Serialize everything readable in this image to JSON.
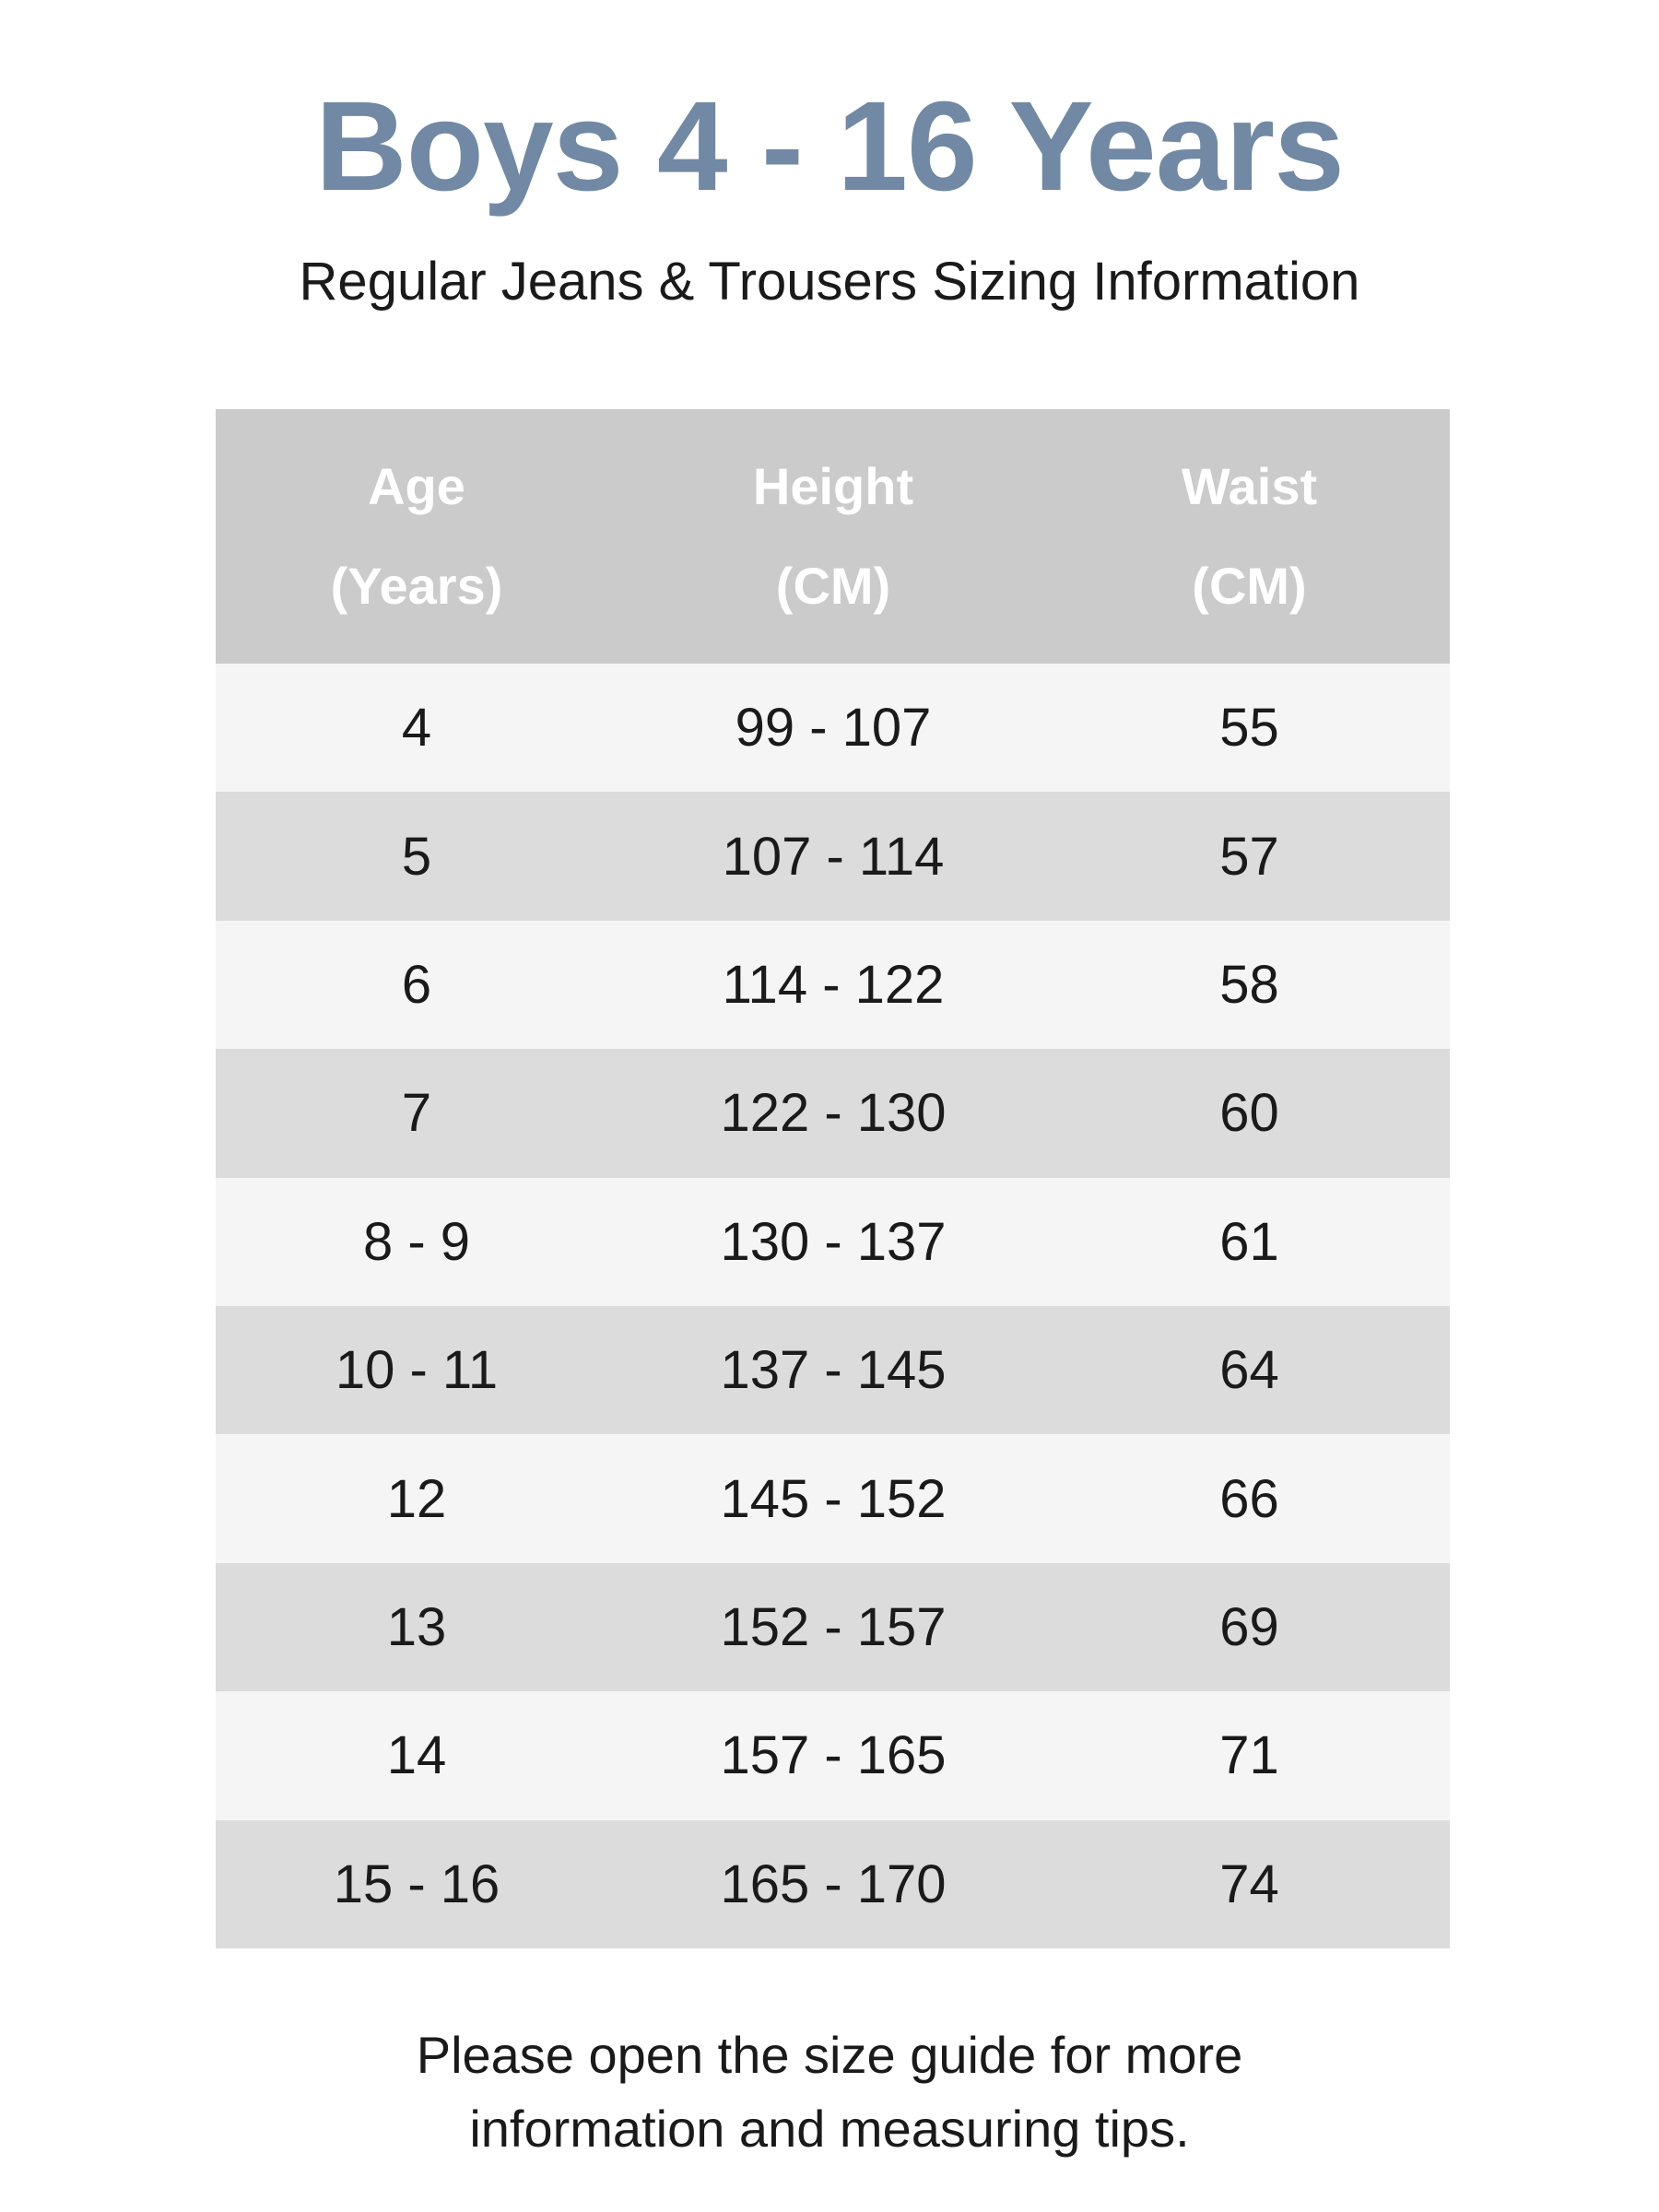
{
  "title": "Boys 4 - 16 Years",
  "subtitle": "Regular Jeans & Trousers Sizing Information",
  "table": {
    "headers": [
      {
        "line1": "Age",
        "line2": "(Years)"
      },
      {
        "line1": "Height",
        "line2": "(CM)"
      },
      {
        "line1": "Waist",
        "line2": "(CM)"
      }
    ],
    "rows": [
      [
        "4",
        "99 - 107",
        "55"
      ],
      [
        "5",
        "107 - 114",
        "57"
      ],
      [
        "6",
        "114 - 122",
        "58"
      ],
      [
        "7",
        "122 - 130",
        "60"
      ],
      [
        "8 - 9",
        "130 - 137",
        "61"
      ],
      [
        "10 - 11",
        "137 - 145",
        "64"
      ],
      [
        "12",
        "145 - 152",
        "66"
      ],
      [
        "13",
        "152 - 157",
        "69"
      ],
      [
        "14",
        "157 - 165",
        "71"
      ],
      [
        "15 - 16",
        "165 - 170",
        "74"
      ]
    ]
  },
  "footer": {
    "line1": "Please open the size guide for more",
    "line2": "information and measuring tips."
  },
  "colors": {
    "title": "#7189a4",
    "header_bg": "#cbcbcb",
    "row_light": "#f5f5f5",
    "row_dark": "#dcdcdc"
  }
}
